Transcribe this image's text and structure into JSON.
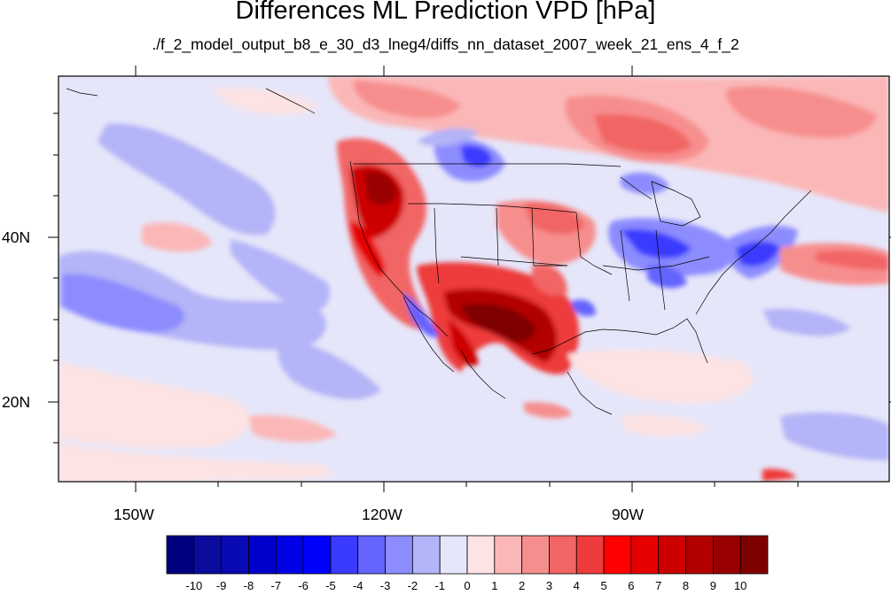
{
  "title": "Differences ML Prediction VPD [hPa]",
  "subtitle": "./f_2_model_output_b8_e_30_d3_lneg4/diffs_nn_dataset_2007_week_21_ens_4_f_2",
  "map": {
    "lon_range": [
      -160,
      -60
    ],
    "lat_range": [
      10,
      59
    ],
    "x_labels": [
      "150W",
      "120W",
      "90W"
    ],
    "y_labels": [
      "40N",
      "20N"
    ]
  },
  "colorbar": {
    "labels": [
      "-10",
      "-9",
      "-8",
      "-7",
      "-6",
      "-5",
      "-4",
      "-3",
      "-2",
      "-1",
      "0",
      "1",
      "2",
      "3",
      "4",
      "5",
      "6",
      "7",
      "8",
      "9",
      "10"
    ],
    "colors": [
      "#00007f",
      "#0c0c9c",
      "#0a0ab4",
      "#0000cc",
      "#0000e6",
      "#0000ff",
      "#3a3aff",
      "#6464ff",
      "#8c8cff",
      "#b4b4f8",
      "#e6e6fa",
      "#fde3e3",
      "#fbb7b7",
      "#f78e8e",
      "#f26565",
      "#ee3b3b",
      "#ff0000",
      "#e60000",
      "#cc0000",
      "#b20000",
      "#990000",
      "#7f0000"
    ]
  }
}
